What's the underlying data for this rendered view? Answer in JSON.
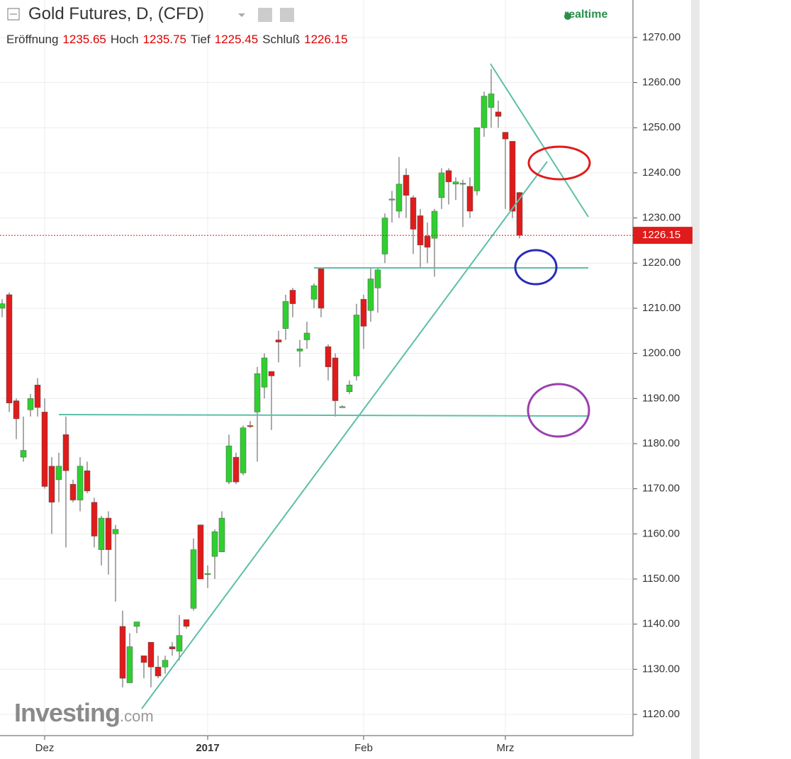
{
  "chart_data": {
    "type": "candlestick",
    "title": "Gold Futures, D, (CFD)",
    "status": "realtime",
    "ohlc_header": [
      {
        "label": "Eröffnung",
        "value": 1235.65
      },
      {
        "label": "Hoch",
        "value": 1235.75
      },
      {
        "label": "Tief",
        "value": 1225.45
      },
      {
        "label": "Schluß",
        "value": 1226.15
      }
    ],
    "last_price": 1226.15,
    "logo": {
      "name": "Investing",
      "suffix": ".com"
    },
    "categories": [
      null,
      null,
      null,
      null,
      null,
      null,
      "Dez",
      null,
      null,
      null,
      null,
      null,
      null,
      null,
      null,
      null,
      null,
      null,
      null,
      null,
      null,
      null,
      null,
      null,
      null,
      null,
      null,
      null,
      null,
      "2017",
      null,
      null,
      null,
      null,
      null,
      null,
      null,
      null,
      null,
      null,
      null,
      null,
      null,
      null,
      null,
      null,
      null,
      null,
      null,
      null,
      null,
      "Feb",
      null,
      null,
      null,
      null,
      null,
      null,
      null,
      null,
      null,
      null,
      null,
      null,
      null,
      null,
      null,
      null,
      null,
      null,
      null,
      "Mrz",
      null,
      null
    ],
    "open": [
      1210,
      1213,
      1189.5,
      1177,
      1187.5,
      1193,
      1187,
      1175,
      1172,
      1182,
      1171,
      1167.5,
      1174,
      1167,
      1156.5,
      1163.5,
      1160,
      1139.5,
      1127,
      1139.5,
      1133,
      1136,
      1130.5,
      1130.5,
      1135,
      1134,
      1141,
      1143.5,
      1162,
      1151,
      1155,
      1156,
      1171.5,
      1177,
      1173.5,
      1184,
      1187,
      1192.5,
      1196,
      1203,
      1205.5,
      1214,
      1200.5,
      1203,
      1212,
      1219,
      1201.5,
      1199,
      1188,
      1191.5,
      1195,
      1212,
      1209.5,
      1214.5,
      1222,
      1234,
      1231.5,
      1239.5,
      1234.5,
      1230.5,
      1226,
      1225.5,
      1234.5,
      1240.5,
      1237.5,
      1237.5,
      1237,
      1236,
      1250,
      1254.5,
      1253.5,
      1249,
      1247,
      1235.65
    ],
    "high": [
      1212,
      1213.5,
      1190,
      1186,
      1191,
      1194.5,
      1190,
      1177,
      1178,
      1186,
      1172,
      1177,
      1176,
      1168,
      1164,
      1165,
      1162,
      1143,
      1138,
      1140.5,
      1133,
      1136,
      1133,
      1133,
      1136,
      1142,
      1141,
      1159,
      1162,
      1153,
      1161,
      1165,
      1182,
      1178,
      1184,
      1185,
      1197,
      1200,
      1196,
      1205,
      1213,
      1214.5,
      1203,
      1207,
      1215.5,
      1219,
      1202,
      1200,
      1188.5,
      1194,
      1211,
      1213,
      1219,
      1219,
      1231,
      1236,
      1243.5,
      1241,
      1235,
      1232,
      1229,
      1232,
      1241,
      1241,
      1239,
      1238.5,
      1239,
      1250,
      1258,
      1263,
      1256,
      1249,
      1247,
      1235.75
    ],
    "low": [
      1208,
      1187,
      1181,
      1176,
      1186,
      1186,
      1170,
      1160,
      1167,
      1157,
      1167,
      1165,
      1169,
      1157,
      1153,
      1151,
      1145,
      1126,
      1127,
      1138,
      1128,
      1126,
      1128,
      1129,
      1133,
      1132,
      1139,
      1143,
      1150,
      1148,
      1150,
      1156,
      1171,
      1171,
      1173,
      1183.5,
      1176,
      1190,
      1183,
      1198,
      1203,
      1208,
      1197,
      1201,
      1210,
      1208,
      1194,
      1186,
      1188,
      1191,
      1194,
      1201,
      1207,
      1209,
      1220,
      1229,
      1230,
      1230,
      1222,
      1219,
      1220,
      1217,
      1232,
      1233,
      1234,
      1228,
      1230,
      1235,
      1248,
      1250,
      1250,
      1232,
      1230,
      1225.45
    ],
    "close": [
      1211,
      1189,
      1185.5,
      1178.5,
      1190,
      1188,
      1170.5,
      1167,
      1175,
      1174,
      1167.5,
      1175,
      1169.5,
      1159.5,
      1163.5,
      1156.5,
      1161,
      1128,
      1135,
      1140.5,
      1131.5,
      1130.5,
      1128.5,
      1132,
      1134.5,
      1137.5,
      1139.5,
      1156.5,
      1150,
      1151.2,
      1160.5,
      1163.5,
      1179.5,
      1171.5,
      1183.5,
      1183.8,
      1195.5,
      1199,
      1195,
      1202.5,
      1211.5,
      1211,
      1201,
      1204.5,
      1215,
      1210,
      1197,
      1189.5,
      1188.2,
      1193,
      1208.5,
      1206,
      1216.5,
      1218.5,
      1230,
      1234.2,
      1237.5,
      1235,
      1227.5,
      1224,
      1223.5,
      1231.5,
      1240,
      1238,
      1238,
      1237.7,
      1231.5,
      1250,
      1257,
      1257.5,
      1252.5,
      1247.5,
      1231.5,
      1226.15
    ],
    "up_color": "#2fcf2f",
    "down_color": "#e01b1b",
    "ylim": [
      1115.3,
      1278.3
    ],
    "yticks": [
      {
        "value": 1120,
        "label": "1120.00"
      },
      {
        "value": 1130,
        "label": "1130.00"
      },
      {
        "value": 1140,
        "label": "1140.00"
      },
      {
        "value": 1150,
        "label": "1150.00"
      },
      {
        "value": 1160,
        "label": "1160.00"
      },
      {
        "value": 1170,
        "label": "1170.00"
      },
      {
        "value": 1180,
        "label": "1180.00"
      },
      {
        "value": 1190,
        "label": "1190.00"
      },
      {
        "value": 1200,
        "label": "1200.00"
      },
      {
        "value": 1210,
        "label": "1210.00"
      },
      {
        "value": 1220,
        "label": "1220.00"
      },
      {
        "value": 1230,
        "label": "1230.00"
      },
      {
        "value": 1240,
        "label": "1240.00"
      },
      {
        "value": 1250,
        "label": "1250.00"
      },
      {
        "value": 1260,
        "label": "1260.00"
      },
      {
        "value": 1270,
        "label": "1270.00"
      }
    ],
    "grid": true
  }
}
